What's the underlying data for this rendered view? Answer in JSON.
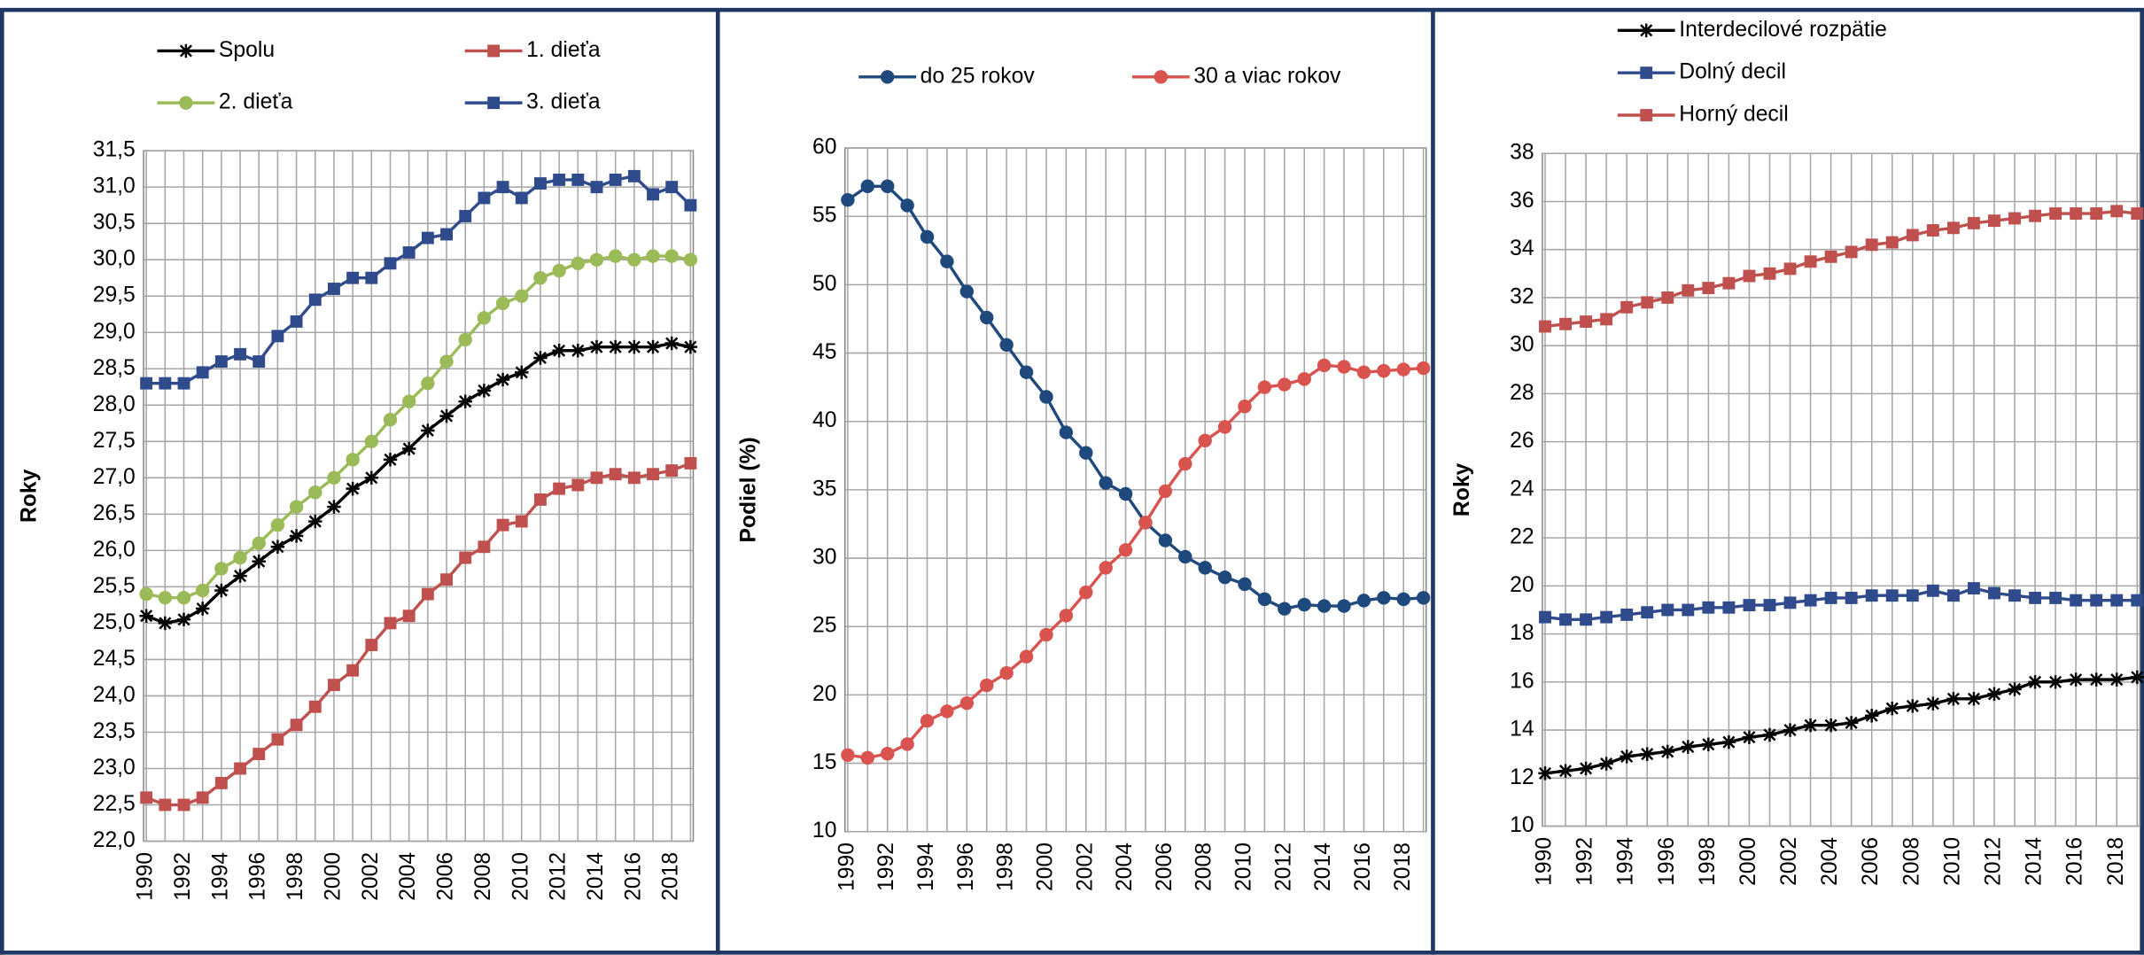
{
  "chart_data": [
    {
      "type": "line",
      "y_label": "Roky",
      "categories": [
        "1990",
        null,
        "1992",
        null,
        "1994",
        null,
        "1996",
        null,
        "1998",
        null,
        "2000",
        null,
        "2002",
        null,
        "2004",
        null,
        "2006",
        null,
        "2008",
        null,
        "2010",
        null,
        "2012",
        null,
        "2014",
        null,
        "2016",
        null,
        "2018",
        null
      ],
      "ylim": [
        22,
        31.5
      ],
      "yticks": [
        {
          "value": 22,
          "label": "22,0"
        },
        {
          "value": 22.5,
          "label": "22,5"
        },
        {
          "value": 23,
          "label": "23,0"
        },
        {
          "value": 23.5,
          "label": "23,5"
        },
        {
          "value": 24,
          "label": "24,0"
        },
        {
          "value": 24.5,
          "label": "24,5"
        },
        {
          "value": 25,
          "label": "25,0"
        },
        {
          "value": 25.5,
          "label": "25,5"
        },
        {
          "value": 26,
          "label": "26,0"
        },
        {
          "value": 26.5,
          "label": "26,5"
        },
        {
          "value": 27,
          "label": "27,0"
        },
        {
          "value": 27.5,
          "label": "27,5"
        },
        {
          "value": 28,
          "label": "28,0"
        },
        {
          "value": 28.5,
          "label": "28,5"
        },
        {
          "value": 29,
          "label": "29,0"
        },
        {
          "value": 29.5,
          "label": "29,5"
        },
        {
          "value": 30,
          "label": "30,0"
        },
        {
          "value": 30.5,
          "label": "30,5"
        },
        {
          "value": 31,
          "label": "31,0"
        },
        {
          "value": 31.5,
          "label": "31,5"
        }
      ],
      "grid": true,
      "series": [
        {
          "name": "Spolu",
          "color": "#000000",
          "marker": "star",
          "values": [
            25.1,
            25.0,
            25.05,
            25.2,
            25.45,
            25.65,
            25.85,
            26.05,
            26.2,
            26.4,
            26.6,
            26.85,
            27.0,
            27.25,
            27.4,
            27.65,
            27.85,
            28.05,
            28.2,
            28.35,
            28.45,
            28.65,
            28.75,
            28.75,
            28.8,
            28.8,
            28.8,
            28.8,
            28.85,
            28.8
          ]
        },
        {
          "name": "1. dieťa",
          "color": "#c0504d",
          "marker": "square",
          "values": [
            22.6,
            22.5,
            22.5,
            22.6,
            22.8,
            23.0,
            23.2,
            23.4,
            23.6,
            23.85,
            24.15,
            24.35,
            24.7,
            25.0,
            25.1,
            25.4,
            25.6,
            25.9,
            26.05,
            26.35,
            26.4,
            26.7,
            26.85,
            26.9,
            27.0,
            27.05,
            27.0,
            27.05,
            27.1,
            27.2
          ]
        },
        {
          "name": "2. dieťa",
          "color": "#9bbb59",
          "marker": "circle",
          "values": [
            25.4,
            25.35,
            25.35,
            25.45,
            25.75,
            25.9,
            26.1,
            26.35,
            26.6,
            26.8,
            27.0,
            27.25,
            27.5,
            27.8,
            28.05,
            28.3,
            28.6,
            28.9,
            29.2,
            29.4,
            29.5,
            29.75,
            29.85,
            29.95,
            30.0,
            30.05,
            30.0,
            30.05,
            30.05,
            30.0
          ]
        },
        {
          "name": "3. dieťa",
          "color": "#2f4b8c",
          "marker": "square",
          "values": [
            28.3,
            28.3,
            28.3,
            28.45,
            28.6,
            28.7,
            28.6,
            28.95,
            29.15,
            29.45,
            29.6,
            29.75,
            29.75,
            29.95,
            30.1,
            30.3,
            30.35,
            30.6,
            30.85,
            31.0,
            30.85,
            31.05,
            31.1,
            31.1,
            31.0,
            31.1,
            31.15,
            30.9,
            31.0,
            30.75
          ]
        }
      ]
    },
    {
      "type": "line",
      "y_label": "Podiel (%)",
      "categories": [
        "1990",
        null,
        "1992",
        null,
        "1994",
        null,
        "1996",
        null,
        "1998",
        null,
        "2000",
        null,
        "2002",
        null,
        "2004",
        null,
        "2006",
        null,
        "2008",
        null,
        "2010",
        null,
        "2012",
        null,
        "2014",
        null,
        "2016",
        null,
        "2018",
        null
      ],
      "ylim": [
        10,
        60
      ],
      "yticks": [
        10,
        15,
        20,
        25,
        30,
        35,
        40,
        45,
        50,
        55,
        60
      ],
      "grid": true,
      "series": [
        {
          "name": "do 25 rokov",
          "color": "#1f497d",
          "marker": "circle",
          "values": [
            56.2,
            57.2,
            57.2,
            55.8,
            53.5,
            51.7,
            49.5,
            47.6,
            45.6,
            43.6,
            41.8,
            39.2,
            37.7,
            35.5,
            34.7,
            32.6,
            31.3,
            30.1,
            29.3,
            28.6,
            28.1,
            27.0,
            26.3,
            26.6,
            26.5,
            26.5,
            26.9,
            27.1,
            27.0,
            27.1
          ]
        },
        {
          "name": "30 a viac rokov",
          "color": "#d9534f",
          "marker": "circle",
          "values": [
            15.6,
            15.4,
            15.7,
            16.4,
            18.1,
            18.8,
            19.4,
            20.7,
            21.6,
            22.8,
            24.4,
            25.8,
            27.5,
            29.3,
            30.6,
            32.6,
            34.9,
            36.9,
            38.6,
            39.6,
            41.1,
            42.5,
            42.7,
            43.1,
            44.1,
            44.0,
            43.6,
            43.7,
            43.8,
            43.9
          ]
        }
      ]
    },
    {
      "type": "line",
      "y_label": "Roky",
      "categories": [
        "1990",
        null,
        "1992",
        null,
        "1994",
        null,
        "1996",
        null,
        "1998",
        null,
        "2000",
        null,
        "2002",
        null,
        "2004",
        null,
        "2006",
        null,
        "2008",
        null,
        "2010",
        null,
        "2012",
        null,
        "2014",
        null,
        "2016",
        null,
        "2018",
        null
      ],
      "ylim": [
        10,
        38
      ],
      "yticks": [
        10,
        12,
        14,
        16,
        18,
        20,
        22,
        24,
        26,
        28,
        30,
        32,
        34,
        36,
        38
      ],
      "grid": true,
      "series": [
        {
          "name": "Interdecilové rozpätie",
          "color": "#000000",
          "marker": "star",
          "values": [
            12.2,
            12.3,
            12.4,
            12.6,
            12.9,
            13.0,
            13.1,
            13.3,
            13.4,
            13.5,
            13.7,
            13.8,
            14.0,
            14.2,
            14.2,
            14.3,
            14.6,
            14.9,
            15.0,
            15.1,
            15.3,
            15.3,
            15.5,
            15.7,
            16.0,
            16.0,
            16.1,
            16.1,
            16.1,
            16.2
          ]
        },
        {
          "name": "Dolný decil",
          "color": "#2f4b8c",
          "marker": "square",
          "values": [
            18.7,
            18.6,
            18.6,
            18.7,
            18.8,
            18.9,
            19.0,
            19.0,
            19.1,
            19.1,
            19.2,
            19.2,
            19.3,
            19.4,
            19.5,
            19.5,
            19.6,
            19.6,
            19.6,
            19.8,
            19.6,
            19.9,
            19.7,
            19.6,
            19.5,
            19.5,
            19.4,
            19.4,
            19.4,
            19.4
          ]
        },
        {
          "name": "Horný decil",
          "color": "#c0504d",
          "marker": "square",
          "values": [
            30.8,
            30.9,
            31.0,
            31.1,
            31.6,
            31.8,
            32.0,
            32.3,
            32.4,
            32.6,
            32.9,
            33.0,
            33.2,
            33.5,
            33.7,
            33.9,
            34.2,
            34.3,
            34.6,
            34.8,
            34.9,
            35.1,
            35.2,
            35.3,
            35.4,
            35.5,
            35.5,
            35.5,
            35.6,
            35.5
          ]
        }
      ]
    }
  ]
}
